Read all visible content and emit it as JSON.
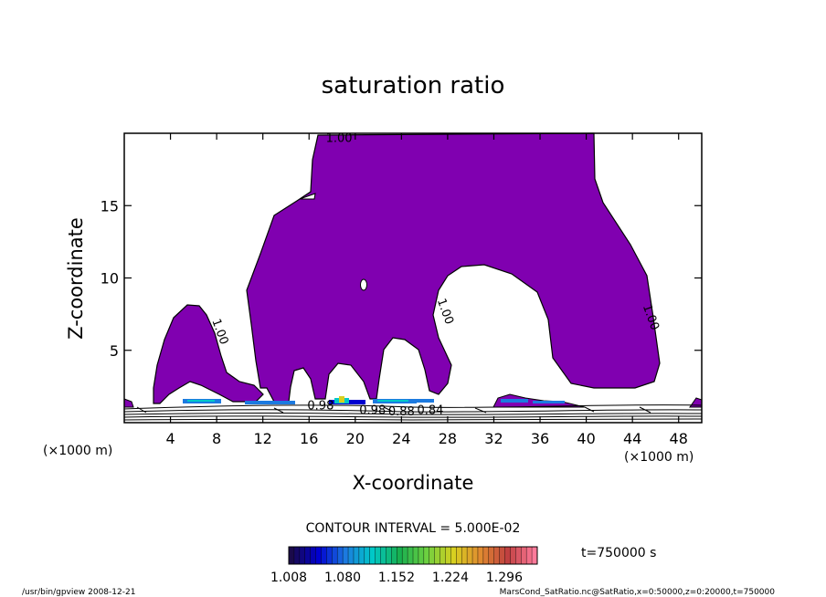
{
  "chart_data": {
    "type": "contour",
    "title": "saturation ratio",
    "xlabel": "X-coordinate",
    "ylabel": "Z-coordinate",
    "x_unit_label": "(×1000 m)",
    "x_unit_label_right": "(×1000 m)",
    "xlim": [
      0,
      50
    ],
    "ylim": [
      0,
      20
    ],
    "xticks": [
      4,
      8,
      12,
      16,
      20,
      24,
      28,
      32,
      36,
      40,
      44,
      48
    ],
    "yticks": [
      5,
      10,
      15
    ],
    "contour_interval_text": "CONTOUR INTERVAL = 5.000E-02",
    "contour_labels": [
      {
        "text": "1.00",
        "x": 18.6,
        "z": 19.4
      },
      {
        "text": "1.00",
        "x": 8.0,
        "z": 6.2
      },
      {
        "text": "1.00",
        "x": 27.5,
        "z": 7.6
      },
      {
        "text": "1.00",
        "x": 45.3,
        "z": 7.2
      },
      {
        "text": "0.98",
        "x": 17.0,
        "z": 0.9
      },
      {
        "text": "0.98",
        "x": 21.5,
        "z": 0.6
      },
      {
        "text": "0.88",
        "x": 24.0,
        "z": 0.5
      },
      {
        "text": "0.84",
        "x": 26.5,
        "z": 0.6
      }
    ],
    "colorbar": {
      "ticks": [
        "1.008",
        "1.080",
        "1.152",
        "1.224",
        "1.296"
      ],
      "vmin": 1.008,
      "vmax": 1.34,
      "colors": [
        "#1a0a4a",
        "#0000d0",
        "#1c7ae0",
        "#00c8c8",
        "#18b050",
        "#6cd040",
        "#d8d020",
        "#e08a30",
        "#c04040",
        "#ff7a9a"
      ]
    },
    "fill_color": "#8000b0",
    "time_label": "t=750000 s"
  },
  "footer": {
    "left": "/usr/bin/gpview  2008-12-21",
    "right": "MarsCond_SatRatio.nc@SatRatio,x=0:50000,z=0:20000,t=750000"
  }
}
